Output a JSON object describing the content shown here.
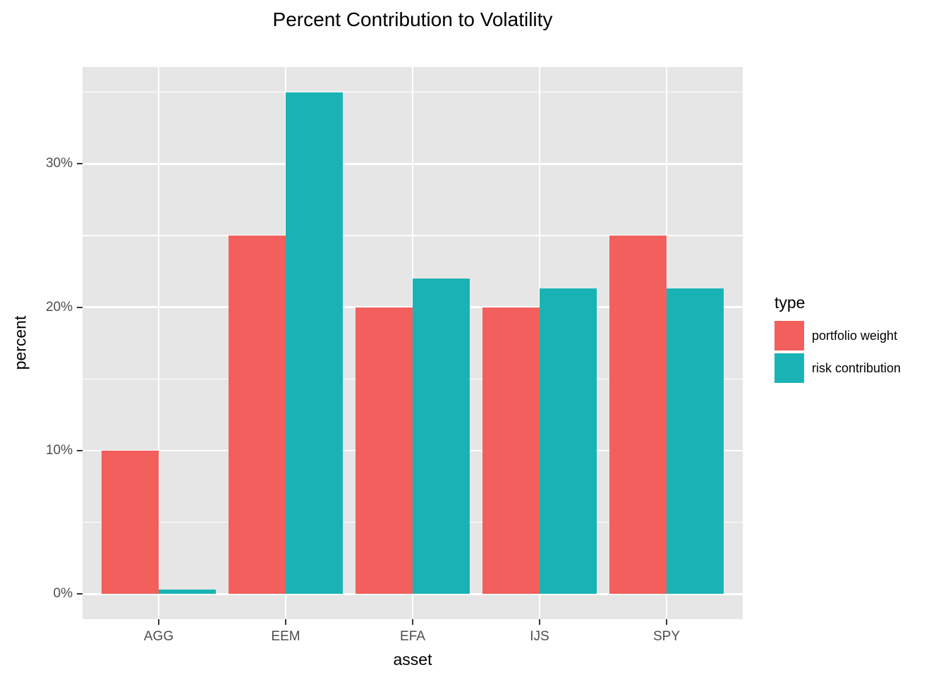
{
  "chart_data": {
    "type": "bar",
    "subtype": "grouped-dodged",
    "title": "Percent Contribution to Volatility",
    "xlabel": "asset",
    "ylabel": "percent",
    "categories": [
      "AGG",
      "EEM",
      "EFA",
      "IJS",
      "SPY"
    ],
    "series": [
      {
        "name": "portfolio weight",
        "color": "#F25F5C",
        "values": [
          10,
          25,
          20,
          20,
          25
        ]
      },
      {
        "name": "risk contribution",
        "color": "#1AB3B5",
        "values": [
          0.3,
          35,
          22,
          21.3,
          21.3
        ]
      }
    ],
    "ylim": [
      0,
      35
    ],
    "y_tick_values": [
      0,
      10,
      20,
      30
    ],
    "y_tick_labels": [
      "0%",
      "10%",
      "20%",
      "30%"
    ],
    "y_minor_values": [
      5,
      15,
      25,
      35
    ],
    "grid": true,
    "legend": {
      "title": "type",
      "position": "right"
    },
    "colors": {
      "portfolio_weight": "#F25F5C",
      "risk_contribution": "#1AB3B5",
      "panel_background": "#E6E6E6",
      "gridline": "#FFFFFF",
      "axis_text": "#4D4D4D",
      "tick_mark": "#333333"
    }
  }
}
